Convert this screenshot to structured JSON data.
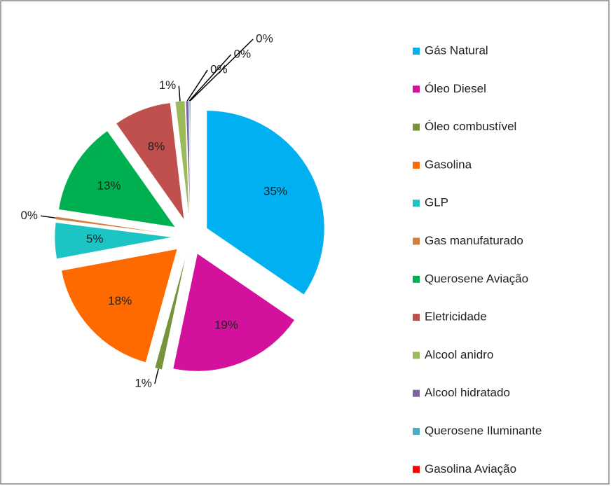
{
  "chart_data": {
    "type": "pie",
    "categories": [
      "Gás Natural",
      "Óleo Diesel",
      "Óleo combustível",
      "Gasolina",
      "GLP",
      "Gas manufaturado",
      "Querosene Aviação",
      "Eletricidade",
      "Alcool anidro",
      "Alcool hidratado",
      "Querosene Iluminante",
      "Gasolina Aviação"
    ],
    "values": [
      35,
      19,
      1,
      18,
      5,
      0.4,
      13,
      8,
      1.3,
      0.4,
      0.1,
      0.1
    ],
    "value_labels": [
      "35%",
      "19%",
      "1%",
      "18%",
      "5%",
      "0%",
      "13%",
      "8%",
      "1%",
      "0%",
      "0%",
      "0%"
    ],
    "colors": [
      "#00b0f0",
      "#d4119c",
      "#77933c",
      "#ff6a00",
      "#1cc4c4",
      "#d2803e",
      "#00b050",
      "#c0504d",
      "#9bbb59",
      "#8064a2",
      "#4bacc6",
      "#ff0000"
    ],
    "legend": "right"
  }
}
